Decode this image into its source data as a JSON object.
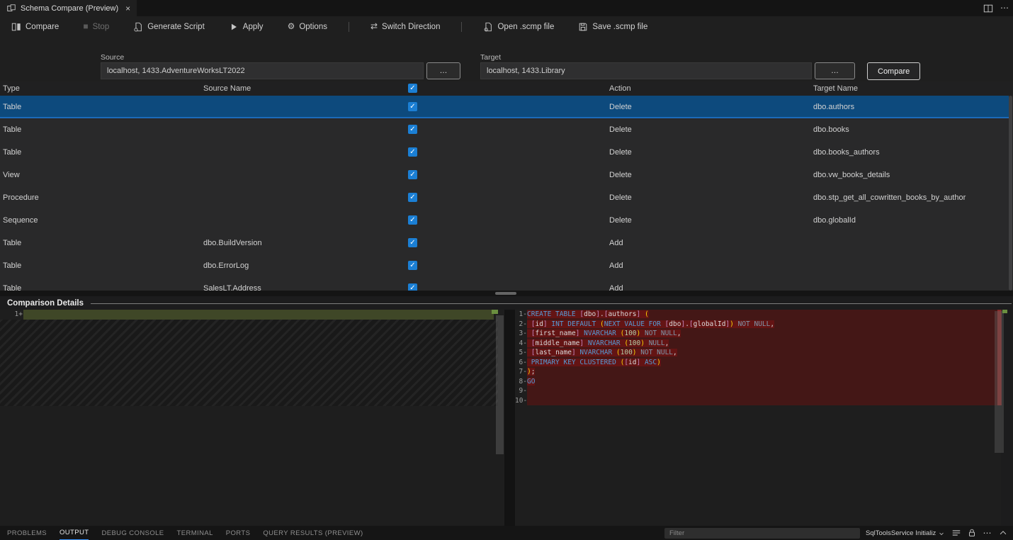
{
  "tab_bar": {
    "title": "Schema Compare (Preview)",
    "tab_icon": "schema-compare-icon",
    "close_icon": "close-icon",
    "actions": [
      {
        "name": "split-editor-button",
        "icon": "split-editor-icon"
      },
      {
        "name": "editor-more-actions-button",
        "icon": "more-actions-icon"
      }
    ]
  },
  "toolbar": {
    "items": [
      {
        "name": "compare-toolbar-button",
        "icon": "compare-icon",
        "label": "Compare"
      },
      {
        "name": "stop-button",
        "icon": "stop-icon",
        "label": "Stop",
        "disabled": true
      },
      {
        "name": "generate-script-button",
        "icon": "generate-script-icon",
        "label": "Generate Script"
      },
      {
        "name": "apply-button",
        "icon": "play-icon",
        "label": "Apply"
      },
      {
        "name": "options-button",
        "icon": "gear-icon",
        "label": "Options"
      },
      {
        "separator": true
      },
      {
        "name": "switch-direction-button",
        "icon": "switch-direction-icon",
        "label": "Switch Direction"
      },
      {
        "separator": true
      },
      {
        "name": "open-scmp-button",
        "icon": "open-file-icon",
        "label": "Open .scmp file"
      },
      {
        "name": "save-scmp-button",
        "icon": "save-file-icon",
        "label": "Save .scmp file"
      }
    ]
  },
  "connections": {
    "source_label": "Source",
    "source_value": "localhost, 1433.AdventureWorksLT2022",
    "target_label": "Target",
    "target_value": "localhost, 1433.Library",
    "browse_label": "…",
    "compare_label": "Compare"
  },
  "grid": {
    "headers": {
      "type": "Type",
      "source": "Source Name",
      "action": "Action",
      "target": "Target Name"
    },
    "header_checked": true,
    "rows": [
      {
        "type": "Table",
        "source": "",
        "checked": true,
        "action": "Delete",
        "target": "dbo.authors",
        "selected": true
      },
      {
        "type": "Table",
        "source": "",
        "checked": true,
        "action": "Delete",
        "target": "dbo.books"
      },
      {
        "type": "Table",
        "source": "",
        "checked": true,
        "action": "Delete",
        "target": "dbo.books_authors"
      },
      {
        "type": "View",
        "source": "",
        "checked": true,
        "action": "Delete",
        "target": "dbo.vw_books_details"
      },
      {
        "type": "Procedure",
        "source": "",
        "checked": true,
        "action": "Delete",
        "target": "dbo.stp_get_all_cowritten_books_by_author"
      },
      {
        "type": "Sequence",
        "source": "",
        "checked": true,
        "action": "Delete",
        "target": "dbo.globalId"
      },
      {
        "type": "Table",
        "source": "dbo.BuildVersion",
        "checked": true,
        "action": "Add",
        "target": ""
      },
      {
        "type": "Table",
        "source": "dbo.ErrorLog",
        "checked": true,
        "action": "Add",
        "target": ""
      },
      {
        "type": "Table",
        "source": "SalesLT.Address",
        "checked": true,
        "action": "Add",
        "target": ""
      }
    ]
  },
  "details": {
    "title": "Comparison Details",
    "left": {
      "line_number": "1",
      "marker": "+"
    },
    "right": {
      "lines": [
        {
          "n": "1",
          "marker": "-",
          "tokens": [
            [
              "kw",
              "CREATE TABLE "
            ],
            [
              "br",
              "["
            ],
            [
              "id",
              "dbo"
            ],
            [
              "br",
              "]"
            ],
            [
              "pl",
              "."
            ],
            [
              "br",
              "["
            ],
            [
              "id",
              "authors"
            ],
            [
              "br",
              "]"
            ],
            [
              "pl",
              " "
            ],
            [
              "par",
              "("
            ]
          ]
        },
        {
          "n": "2",
          "marker": "-",
          "tokens": [
            [
              "pl",
              " "
            ],
            [
              "br",
              "["
            ],
            [
              "id",
              "id"
            ],
            [
              "br",
              "]"
            ],
            [
              "kw",
              " INT DEFAULT "
            ],
            [
              "par",
              "("
            ],
            [
              "kw",
              "NEXT VALUE FOR "
            ],
            [
              "br",
              "["
            ],
            [
              "id",
              "dbo"
            ],
            [
              "br",
              "]"
            ],
            [
              "pl",
              "."
            ],
            [
              "br",
              "["
            ],
            [
              "id",
              "globalId"
            ],
            [
              "br",
              "]"
            ],
            [
              "par",
              ")"
            ],
            [
              "dim",
              " NOT NULL"
            ],
            [
              "pl",
              ","
            ]
          ]
        },
        {
          "n": "3",
          "marker": "-",
          "tokens": [
            [
              "pl",
              " "
            ],
            [
              "br",
              "["
            ],
            [
              "id",
              "first_name"
            ],
            [
              "br",
              "]"
            ],
            [
              "kw",
              " NVARCHAR "
            ],
            [
              "par",
              "("
            ],
            [
              "num",
              "100"
            ],
            [
              "par",
              ")"
            ],
            [
              "dim",
              " NOT NULL"
            ],
            [
              "pl",
              ","
            ]
          ]
        },
        {
          "n": "4",
          "marker": "-",
          "tokens": [
            [
              "pl",
              " "
            ],
            [
              "br",
              "["
            ],
            [
              "id",
              "middle_name"
            ],
            [
              "br",
              "]"
            ],
            [
              "kw",
              " NVARCHAR "
            ],
            [
              "par",
              "("
            ],
            [
              "num",
              "100"
            ],
            [
              "par",
              ")"
            ],
            [
              "dim",
              " NULL"
            ],
            [
              "pl",
              ","
            ]
          ]
        },
        {
          "n": "5",
          "marker": "-",
          "tokens": [
            [
              "pl",
              " "
            ],
            [
              "br",
              "["
            ],
            [
              "id",
              "last_name"
            ],
            [
              "br",
              "]"
            ],
            [
              "kw",
              " NVARCHAR "
            ],
            [
              "par",
              "("
            ],
            [
              "num",
              "100"
            ],
            [
              "par",
              ")"
            ],
            [
              "dim",
              " NOT NULL"
            ],
            [
              "pl",
              ","
            ]
          ]
        },
        {
          "n": "6",
          "marker": "-",
          "tokens": [
            [
              "pl",
              " "
            ],
            [
              "kw",
              "PRIMARY KEY CLUSTERED "
            ],
            [
              "par",
              "("
            ],
            [
              "br",
              "["
            ],
            [
              "id",
              "id"
            ],
            [
              "br",
              "]"
            ],
            [
              "kw",
              " ASC"
            ],
            [
              "par",
              ")"
            ]
          ]
        },
        {
          "n": "7",
          "marker": "-",
          "tokens": [
            [
              "par",
              ")"
            ],
            [
              "pl",
              ";"
            ]
          ]
        },
        {
          "n": "8",
          "marker": "-",
          "tokens": [
            [
              "kw",
              "GO"
            ]
          ]
        },
        {
          "n": "9",
          "marker": "-",
          "tokens": []
        },
        {
          "n": "10",
          "marker": "-",
          "tokens": []
        }
      ]
    }
  },
  "panel": {
    "tabs": [
      {
        "label": "PROBLEMS",
        "name": "tab-problems"
      },
      {
        "label": "OUTPUT",
        "name": "tab-output",
        "active": true
      },
      {
        "label": "DEBUG CONSOLE",
        "name": "tab-debug-console"
      },
      {
        "label": "TERMINAL",
        "name": "tab-terminal"
      },
      {
        "label": "PORTS",
        "name": "tab-ports"
      },
      {
        "label": "QUERY RESULTS (PREVIEW)",
        "name": "tab-query-results"
      }
    ],
    "filter_placeholder": "Filter",
    "channel_selector": "SqlToolsService Initializ",
    "icons": [
      {
        "name": "clear-output-button",
        "icon": "clear-output-icon"
      },
      {
        "name": "lock-scroll-button",
        "icon": "lock-icon"
      },
      {
        "name": "panel-more-actions-button",
        "icon": "more-actions-icon"
      },
      {
        "name": "maximize-panel-button",
        "icon": "chevron-up-icon"
      },
      {
        "name": "close-panel-button",
        "icon": "close-icon"
      }
    ]
  },
  "colors": {
    "accent": "#3794ff",
    "checkbox_blue": "#1b7fd4",
    "selected_row": "#0d4a7d",
    "diff_removed_line": "#441716",
    "diff_removed_inline": "#641414",
    "diff_added_line": "#3f4727"
  }
}
